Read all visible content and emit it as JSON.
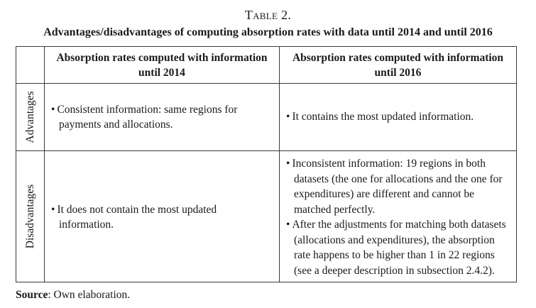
{
  "page": {
    "title": "Table 2.",
    "subtitle": "Advantages/disadvantages of computing absorption rates with data until 2014 and until 2016",
    "source_label": "Source",
    "source_rest": ": Own elaboration."
  },
  "colors": {
    "background": "#ffffff",
    "text": "#1a1a1a",
    "border": "#3a3a3a"
  },
  "table": {
    "columns": [
      {
        "header_line1": "Absorption rates computed with information",
        "header_line2": "until 2014"
      },
      {
        "header_line1": "Absorption rates computed with information",
        "header_line2": "until 2016"
      }
    ],
    "rows": [
      {
        "label": "Advantages",
        "col2014": [
          "Consistent information: same regions for payments and allocations."
        ],
        "col2016": [
          "It contains the most updated information."
        ]
      },
      {
        "label": "Disadvantages",
        "col2014": [
          "It does not contain the most updated information."
        ],
        "col2016": [
          "Inconsistent information: 19 regions in both datasets (the one for allocations and the one for expenditures) are different and cannot be matched perfectly.",
          "After the adjustments for matching both datasets (allocations and expenditures), the absorption rate happens to be higher than 1 in 22 regions (see a deeper description in subsection 2.4.2)."
        ]
      }
    ]
  }
}
